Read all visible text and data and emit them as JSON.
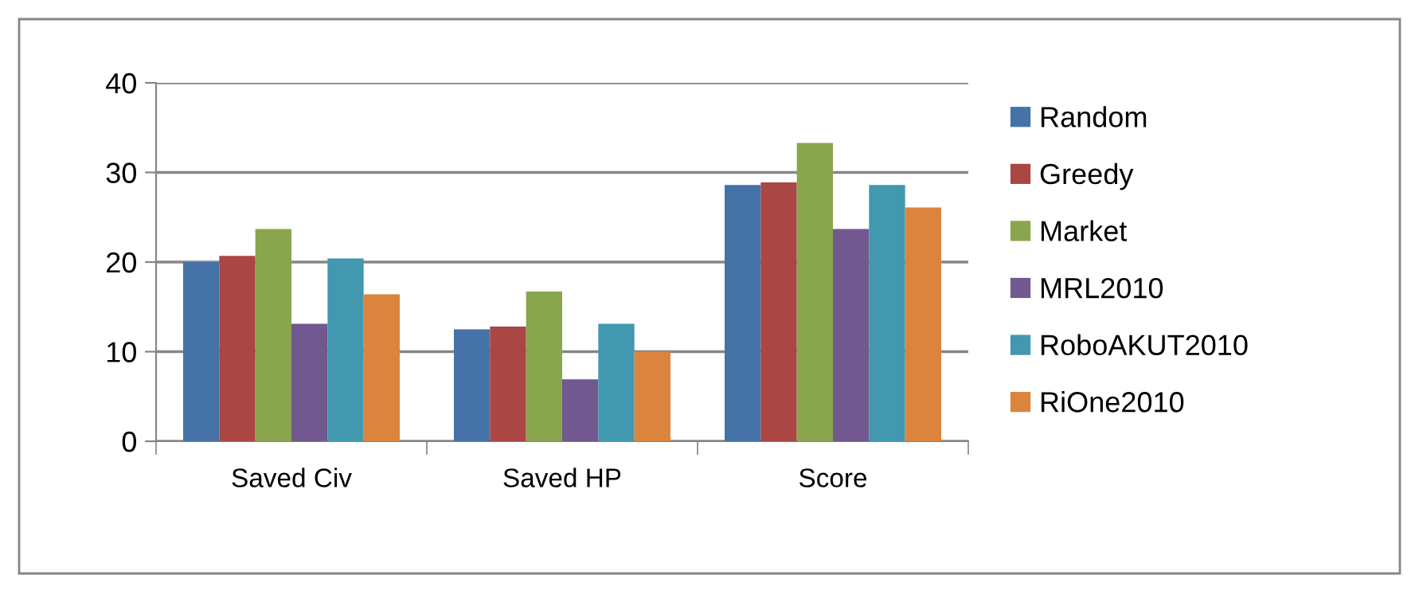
{
  "chart_data": {
    "type": "bar",
    "categories": [
      "Saved Civ",
      "Saved HP",
      "Score"
    ],
    "series": [
      {
        "name": "Random",
        "color": "#4572a7",
        "values": [
          20.0,
          12.5,
          28.6
        ]
      },
      {
        "name": "Greedy",
        "color": "#aa4643",
        "values": [
          20.7,
          12.8,
          28.9
        ]
      },
      {
        "name": "Market",
        "color": "#89a54e",
        "values": [
          23.7,
          16.7,
          33.3
        ]
      },
      {
        "name": "MRL2010",
        "color": "#71588f",
        "values": [
          13.1,
          6.9,
          23.7
        ]
      },
      {
        "name": "RoboAKUT2010",
        "color": "#4198af",
        "values": [
          20.4,
          13.1,
          28.6
        ]
      },
      {
        "name": "RiOne2010",
        "color": "#db843d",
        "values": [
          16.4,
          10.0,
          26.1
        ]
      }
    ],
    "ylim": [
      0,
      40
    ],
    "yticks": [
      0,
      10,
      20,
      30,
      40
    ],
    "grid": "y",
    "legend": "right"
  }
}
